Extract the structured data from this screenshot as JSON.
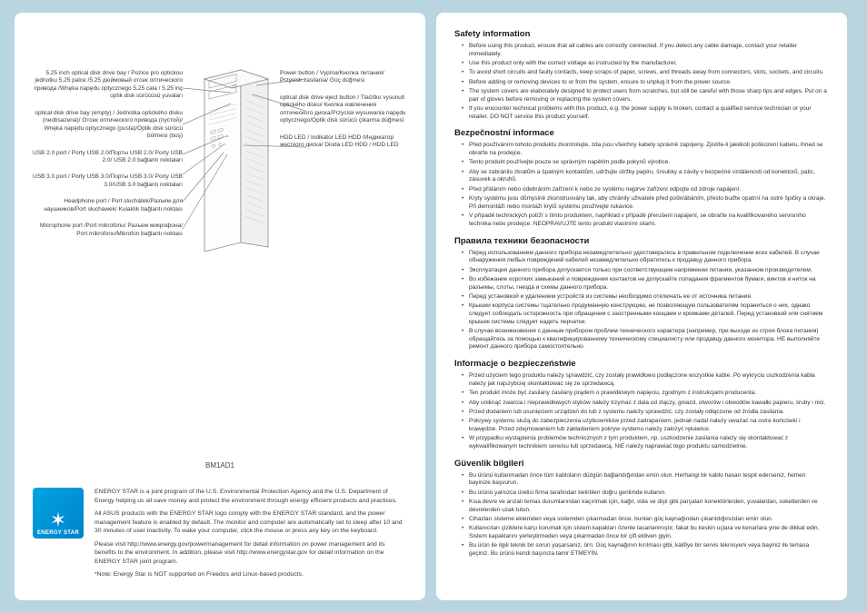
{
  "left_labels": [
    "5.25 inch optical disk drive bay / Pozice pro optickou jednotku 5,25 palce /5.25 дюймовый отсек оптического привода /Wnęka napędu optycznego 5,25 cala / 5.25 inç optik disk sürücüsü yuvaları",
    "optical disk drive bay (empty) / Jednotka optického disku (neobsazená)/ Отсек оптического привода (пустой)/ Wnęka napędu optycznego (pusta)/Optik disk sürücü bölmesi (boş)",
    "USB 2.0 port / Porty USB 2.0/Порты USB 2.0/ Porty USB 2.0/ USB 2.0 bağlantı noktaları",
    "USB 3.0 port / Porty USB 3.0/Порты USB 3.0/ Porty USB 3.0/USB 3.0 bağlantı noktaları",
    "Headphone port / Port sluchátek/Разъем для наушников/Port słuchawek/ Kulaklık bağlantı noktası",
    "Microphone port /Port mikrofonu/ Разъем микрофона/ Port mikrofonu/Mikrofon bağlantı noktası"
  ],
  "right_labels": [
    "Power button / Vypína/Кнопка питания/ Przycisk zasilania/ Güç düğmesi",
    "optical disk drive eject button / Tlačítko vysunutí optického disku/ Кнопка извлечения оптического диска/Przycisk wysuwania napędu optycznego/Optik disk sürücü çıkarma düğmesi",
    "HDD LED / Indikátor LED HDD /Индикатор жесткого диска/ Dioda LED HDD / HDD LED"
  ],
  "model": "BM1AD1",
  "energy_star": {
    "label": "ENERGY STAR",
    "p1": "ENERGY STAR is a joint program of the U.S. Environmental Protection Agency and the U.S. Department of Energy helping us all save money and protect the environment through energy efficient products and practices.",
    "p2": "All ASUS products with the ENERGY STAR logo comply with the ENERGY STAR standard, and the power management feature is enabled by default. The monitor and computer are automatically set to sleep after 10 and 30 minutes of user inactivity. To wake your computer, click the mouse or press any key on the keyboard.",
    "p3": "Please visit http://www.energy.gov/powermanagement for detail information on power management and its benefits to the environment. In addition, please visit http://www.energystar.gov for detail information on the ENERGY STAR joint program.",
    "p4": "*Note: Energy Star is NOT supported on Freedos and Linux-based products."
  },
  "sections": [
    {
      "title": "Safety information",
      "items": [
        "Before using this product, ensure that all cables are correctly connected. If you detect any cable damage, contact your retailer immediately.",
        "Use this product only with the correct voltage as instructed by the manufacturer.",
        "To avoid short circuits and faulty contacts, keep scraps of paper, screws, and threads away from connectors, slots, sockets, and circuits.",
        "Before adding or removing devices to or from the system, ensure to unplug it from the power source.",
        "The system covers are elaborately designed to protect users from scratches, but still be careful with those sharp tips and edges. Put on a pair of gloves before removing or replacing the system covers.",
        "If you encounter technical problems with this product, e.g. the power supply is broken, contact a qualified service technician or your retailer. DO NOT service this product yourself."
      ]
    },
    {
      "title": "Bezpečnostní informace",
      "items": [
        "Před používáním tohoto produktu zkontrolujte, zda jsou všechny kabely správně zapojeny. Zjistíte-li jakékoli poškození kabelu, ihned se obraťte na prodejce.",
        "Tento produkt používejte pouze se správným napětím podle pokynů výrobce.",
        "Aby se zabránilo zkratům a špatným kontaktům, udržujte útržky papíru, šroubky a závity v bezpečné vzdálenosti od konektorů, patic, zásuvek a okruhů.",
        "Před přidáním nebo odebráním zařízení k nebo ze systému nejprve zařízení odpojte od zdroje napájení.",
        "Kryty systému jsou důmyslně zkonstruovány tak, aby chránily uživatele před poškrábáním, přesto buďte opatrní na ostré špičky a okraje. Při demontáži nebo montáži krytů systému používejte rukavice.",
        "V případě technických potíží s tímto produktem, například v případě přerušení napájení, se obraťte na kvalifikovaného servisního technika nebo prodejce. NEOPRAVUJTE tento produkt vlastními silami."
      ]
    },
    {
      "title": "Правила техники безопасности",
      "items": [
        "Перед использованием данного прибора незамедлительно удостоверьтесь в правильном подключении всех кабелей. В случае обнаружения любых повреждений кабелей незамедлительно обратитесь к продавцу данного прибора.",
        "Эксплуатация данного прибора допускается только при соответствующем напряжении питания, указанном производителем.",
        "Во избежание коротких замыканий и повреждения контактов не допускайте попадания фрагментов бумаги, винтов и ниток на разъемы, слоты, гнезда и схемы данного прибора.",
        "Перед установкой и удалением устройств из системы необходимо отключать ее от источника питания.",
        "Крышки корпуса системы тщательно продуманную конструкцию, не позволяющую пользователям пораниться о них, однако следует соблюдать осторожность при обращении с заостренными концами и кромками деталей. Перед установкой или снятием крышек системы следует надеть перчатки.",
        "В случае возникновения с данным прибором проблем технического характера (например, при выходе из строя блока питания) обращайтесь за помощью к квалифицированному техническому специалисту или продавцу данного монитора. НЕ выполняйте ремонт данного прибора самостоятельно."
      ]
    },
    {
      "title": "Informacje o bezpieczeństwie",
      "items": [
        "Przed użyciem tego produktu należy sprawdzić, czy zostały prawidłowo podłączone wszystkie kable. Po wykryciu uszkodzenia kabla należy jak najszybciej skontaktować się ze sprzedawcą.",
        "Ten produkt może być zasilany zasilany prądem o prawidłowym napięciu, zgodnym z instrukcjami producenta.",
        "Aby uniknąć zwarcia i nieprawidłowych styków należy trzymać z dala od złączy, gniazd, otworów i obwodów kawałki papieru, śruby i nici.",
        "Przed dodaniem lub usunięciem urządzeń do lub z systemu należy sprawdzić, czy zostały odłączone od źródła zasilania.",
        "Pokrywy systemu służą do zabezpieczenia użytkowników przed zadrapaniem, jednak nadal należy uważać na ostre końcówki i krawędzie. Przed zdejmowaniem lub zakładaniem pokryw systemu należy założyć rękawice.",
        "W przypadku wystąpienia problemów technicznych z tym produktem, np. uszkodzenie zasilania należy się skontaktować z wykwalifikowanym technikiem serwisu lub sprzedawcą. NIE należy naprawiać tego produktu samodzielnie."
      ]
    },
    {
      "title": "Güvenlik bilgileri",
      "items": [
        "Bu ürünü kullanmadan önce tüm kabloların düzgün bağlandığından emin olun. Herhangi bir kablo hasarı tespit ederseniz, hemen bayinize başvurun.",
        "Bu ürünü yalnızca üretici firma tarafından belirtilen doğru gerilimde kullanın.",
        "Kısa devre ve arızalı temas durumlarından kaçınmak için, kağıt, vida ve dişli gibi parçaları konektörlerden, yuvalardan, soketlerden ve devrelerden uzak tutun.",
        "Cihazları sisteme eklemden veya sistemden çıkarmadan önce, bunları güç kaynağından çıkarıldığınızdan emin olun.",
        "Kullanıcıları çiziklere karşı korumak için sistem kapakları özenle tasarlanmıştır, fakat bu keskin uçlara ve kenarlara yine de dikkat edin. Sistem kapaklarını yerleştirmeden veya çıkarmadan önce bir çift eldiven giyin.",
        "Bu ürün ile ilgili teknik bir sorun yaşarsanız, örn. Güç kaynağının kırılması gibi, kalifiye bir servis teknisyeni veya bayiniz ile temasa geçiniz. Bu ürünü kendi başınıza tamir ETMEYİN."
      ]
    }
  ]
}
